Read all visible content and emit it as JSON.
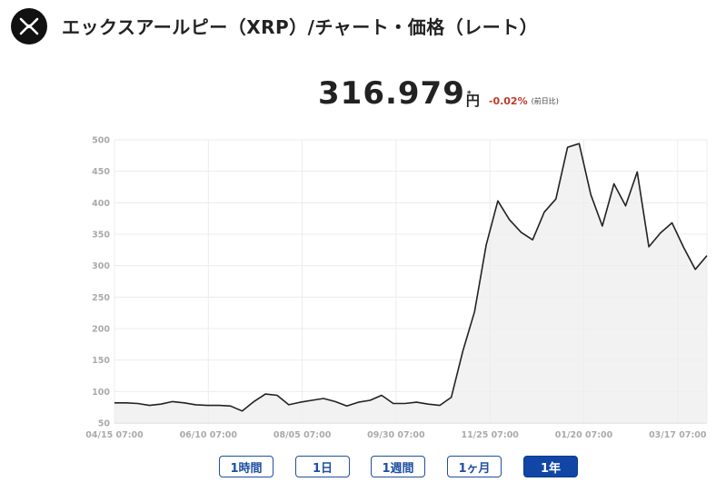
{
  "header": {
    "title": "エックスアールピー（XRP）/チャート・価格（レート）",
    "logo_icon": "xrp-logo-icon"
  },
  "price": {
    "value": "316.979",
    "unit": "円",
    "star": "*",
    "change": "-0.02%",
    "change_note": "(前日比)",
    "change_color": "#c0392b"
  },
  "range_buttons": [
    {
      "label": "1時間",
      "active": false
    },
    {
      "label": "1日",
      "active": false
    },
    {
      "label": "1週間",
      "active": false
    },
    {
      "label": "1ヶ月",
      "active": false
    },
    {
      "label": "1年",
      "active": true
    }
  ],
  "chart_data": {
    "type": "area",
    "title": "",
    "xlabel": "",
    "ylabel": "",
    "ylim": [
      50,
      500
    ],
    "yticks": [
      50,
      100,
      150,
      200,
      250,
      300,
      350,
      400,
      450,
      500
    ],
    "xtick_labels": [
      "04/15 07:00",
      "06/10 07:00",
      "08/05 07:00",
      "09/30 07:00",
      "11/25 07:00",
      "01/20 07:00",
      "03/17 07:00"
    ],
    "grid": true,
    "line_color": "#222222",
    "fill_color": "#eeeeee",
    "series": [
      {
        "values": [
          82,
          82,
          81,
          78,
          80,
          84,
          82,
          79,
          78,
          78,
          77,
          69,
          84,
          96,
          94,
          79,
          83,
          86,
          89,
          84,
          77,
          83,
          86,
          94,
          81,
          81,
          83,
          80,
          78,
          91,
          165,
          227,
          333,
          403,
          373,
          353,
          341,
          385,
          406,
          488,
          494,
          413,
          363,
          430,
          395,
          449,
          330,
          352,
          368,
          329,
          294,
          316
        ]
      }
    ]
  }
}
